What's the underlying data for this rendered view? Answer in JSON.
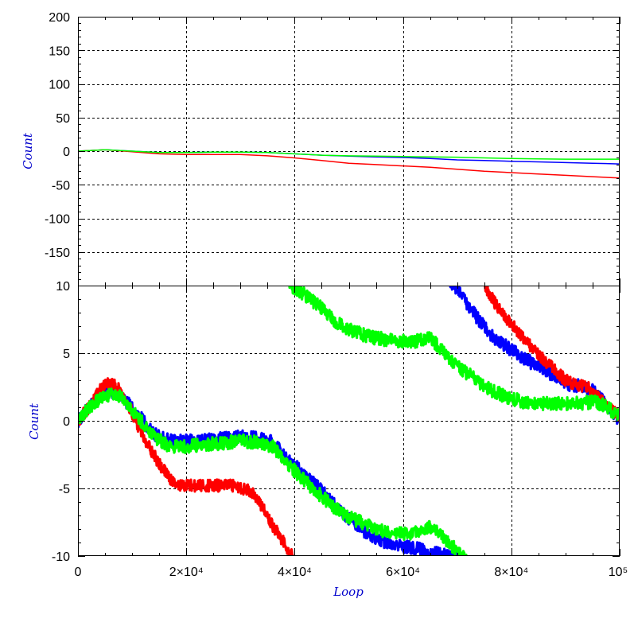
{
  "chart_data": [
    {
      "type": "line",
      "title": "",
      "xlabel": "",
      "ylabel": "Count",
      "xlim": [
        0,
        100000
      ],
      "ylim": [
        -200,
        200
      ],
      "grid": true,
      "x_ticks": [
        0,
        20000,
        40000,
        60000,
        80000,
        100000
      ],
      "y_ticks": [
        {
          "value": 200,
          "label": "200"
        },
        {
          "value": 150,
          "label": "150"
        },
        {
          "value": 100,
          "label": "100"
        },
        {
          "value": 50,
          "label": "50"
        },
        {
          "value": 0,
          "label": "0"
        },
        {
          "value": -50,
          "label": "-50"
        },
        {
          "value": -100,
          "label": "-100"
        },
        {
          "value": -150,
          "label": "-150"
        }
      ],
      "series": [
        {
          "color": "#0000ff",
          "x": [
            0,
            5000,
            10000,
            15000,
            20000,
            25000,
            30000,
            35000,
            40000,
            45000,
            50000,
            55000,
            60000,
            65000,
            70000,
            75000,
            80000,
            85000,
            90000,
            95000,
            100000
          ],
          "y": [
            0,
            2,
            0,
            -2,
            -2,
            -1.5,
            -1.5,
            -2,
            -4,
            -6,
            -7.5,
            -8.5,
            -9.5,
            -11,
            -13,
            -14,
            -15,
            -16,
            -17,
            -18,
            -19
          ]
        },
        {
          "color": "#ff0000",
          "x": [
            0,
            5000,
            10000,
            15000,
            20000,
            25000,
            30000,
            35000,
            40000,
            45000,
            50000,
            55000,
            60000,
            65000,
            70000,
            75000,
            80000,
            85000,
            90000,
            95000,
            100000
          ],
          "y": [
            0,
            2,
            -1,
            -4,
            -5,
            -5,
            -5,
            -7,
            -10,
            -14,
            -18,
            -20,
            -22,
            -24,
            -27,
            -30,
            -32,
            -34,
            -36,
            -38,
            -40
          ]
        },
        {
          "color": "#00ff00",
          "x": [
            0,
            5000,
            10000,
            15000,
            20000,
            25000,
            30000,
            35000,
            40000,
            45000,
            50000,
            55000,
            60000,
            65000,
            70000,
            75000,
            80000,
            85000,
            90000,
            95000,
            100000
          ],
          "y": [
            0,
            2,
            0,
            -2,
            -2,
            -1.5,
            -1.5,
            -2,
            -4,
            -6,
            -7,
            -7.5,
            -8,
            -8.5,
            -9,
            -10,
            -11,
            -11.5,
            -12,
            -12,
            -12
          ]
        }
      ]
    },
    {
      "type": "line",
      "title": "",
      "xlabel": "Loop",
      "ylabel": "Count",
      "xlim": [
        0,
        100000
      ],
      "ylim": [
        -10,
        10
      ],
      "grid": true,
      "x_ticks": [
        {
          "value": 0,
          "label": "0"
        },
        {
          "value": 20000,
          "label": "2×10⁴"
        },
        {
          "value": 40000,
          "label": "4×10⁴"
        },
        {
          "value": 60000,
          "label": "6×10⁴"
        },
        {
          "value": 80000,
          "label": "8×10⁴"
        },
        {
          "value": 100000,
          "label": "10⁵"
        }
      ],
      "y_ticks": [
        {
          "value": 10,
          "label": "10"
        },
        {
          "value": 5,
          "label": "5"
        },
        {
          "value": 0,
          "label": "0"
        },
        {
          "value": -5,
          "label": "-5"
        },
        {
          "value": -10,
          "label": "-10"
        }
      ],
      "series": [
        {
          "color": "#0000ff",
          "band": 1.0,
          "segments": [
            {
              "x": [
                0,
                2000,
                5000,
                8000,
                11000,
                14000,
                17000,
                20000,
                25000,
                30000,
                33000,
                36000,
                39000,
                42000,
                45000,
                48000,
                51000,
                54000,
                57000,
                60000,
                63000,
                66000,
                69000,
                72000
              ],
              "y": [
                0,
                1.0,
                2.3,
                1.8,
                0.5,
                -1.0,
                -1.5,
                -1.5,
                -1.4,
                -1.2,
                -1.3,
                -1.6,
                -3.0,
                -4.0,
                -5.2,
                -6.5,
                -7.5,
                -8.5,
                -9.0,
                -9.3,
                -9.5,
                -9.8,
                -10.0,
                -10.6
              ]
            },
            {
              "x": [
                67000,
                70000,
                73000,
                76000,
                79000,
                82000,
                85000,
                88000,
                91000,
                93000,
                95000,
                97000,
                99000,
                100000
              ],
              "y": [
                11.0,
                9.8,
                8.0,
                6.4,
                5.5,
                4.7,
                4.0,
                3.3,
                2.6,
                2.6,
                2.2,
                1.4,
                0.5,
                0.0
              ]
            }
          ]
        },
        {
          "color": "#ff0000",
          "band": 0.9,
          "segments": [
            {
              "x": [
                0,
                2000,
                5000,
                7000,
                9000,
                11000,
                13000,
                15000,
                17000,
                19000,
                21000,
                23000,
                26000,
                29000,
                32000,
                34000,
                36000,
                38000,
                40000,
                42000
              ],
              "y": [
                0,
                1.0,
                2.8,
                2.6,
                1.5,
                -0.3,
                -1.8,
                -3.2,
                -4.3,
                -4.8,
                -4.8,
                -4.8,
                -4.8,
                -4.8,
                -5.2,
                -6.4,
                -7.8,
                -9.0,
                -10.2,
                -11.0
              ]
            },
            {
              "x": [
                74000,
                76000,
                78000,
                80000,
                82000,
                84000,
                86000,
                88000,
                90000,
                92000,
                94000,
                96000,
                98000,
                100000
              ],
              "y": [
                11.0,
                9.3,
                8.1,
                7.2,
                6.2,
                5.3,
                4.5,
                3.8,
                3.0,
                2.7,
                2.5,
                1.8,
                1.0,
                0.3
              ]
            }
          ]
        },
        {
          "color": "#00ff00",
          "band": 1.0,
          "segments": [
            {
              "x": [
                0,
                2000,
                5000,
                8000,
                11000,
                14000,
                17000,
                20000,
                25000,
                30000,
                33000,
                36000,
                39000,
                42000,
                45000,
                48000,
                51000,
                54000,
                57000,
                60000,
                63000,
                65000,
                67000,
                69000,
                71000,
                72000
              ],
              "y": [
                0,
                1.0,
                1.9,
                1.9,
                0.3,
                -1.2,
                -1.9,
                -1.9,
                -1.7,
                -1.5,
                -1.6,
                -1.9,
                -3.3,
                -4.5,
                -5.6,
                -6.6,
                -7.3,
                -7.8,
                -8.2,
                -8.4,
                -8.2,
                -7.9,
                -8.4,
                -9.2,
                -10.0,
                -10.5
              ]
            },
            {
              "x": [
                39000,
                42000,
                45000,
                48000,
                51000,
                54000,
                57000,
                60000,
                63000,
                65000,
                67000,
                70000,
                73000,
                76000,
                79000,
                82000,
                85000,
                88000,
                91000,
                93000,
                95000,
                97000,
                100000
              ],
              "y": [
                10.1,
                9.3,
                8.3,
                7.2,
                6.6,
                6.2,
                6.0,
                5.9,
                5.9,
                6.2,
                5.3,
                4.0,
                3.2,
                2.3,
                1.8,
                1.4,
                1.3,
                1.3,
                1.3,
                1.3,
                1.4,
                1.2,
                0.3
              ]
            }
          ]
        }
      ]
    }
  ]
}
